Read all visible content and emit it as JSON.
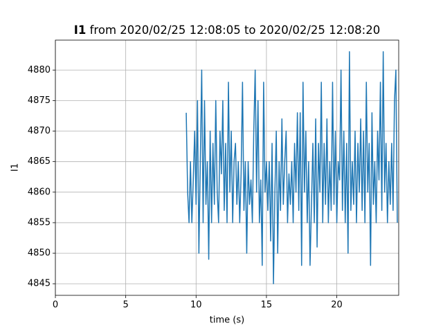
{
  "chart_data": {
    "type": "line",
    "title_bold": "I1",
    "title": "from 2020/02/25 12:08:05 to 2020/02/25 12:08:20",
    "x_label": "time (s)",
    "y_label": "I1",
    "xlim": [
      0,
      24.4
    ],
    "ylim": [
      4843.1,
      4884.9
    ],
    "xticks": [
      0,
      5,
      10,
      15,
      20
    ],
    "yticks": [
      4845,
      4850,
      4855,
      4860,
      4865,
      4870,
      4875,
      4880
    ],
    "grid": true,
    "x": [
      9.3,
      9.4,
      9.5,
      9.6,
      9.7,
      9.8,
      9.9,
      10.0,
      10.1,
      10.2,
      10.3,
      10.4,
      10.5,
      10.6,
      10.7,
      10.8,
      10.9,
      11.0,
      11.1,
      11.2,
      11.3,
      11.4,
      11.5,
      11.6,
      11.7,
      11.8,
      11.9,
      12.0,
      12.1,
      12.2,
      12.3,
      12.4,
      12.5,
      12.6,
      12.7,
      12.8,
      12.9,
      13.0,
      13.1,
      13.2,
      13.3,
      13.4,
      13.5,
      13.6,
      13.7,
      13.8,
      13.9,
      14.0,
      14.1,
      14.2,
      14.3,
      14.4,
      14.5,
      14.6,
      14.7,
      14.8,
      14.9,
      15.0,
      15.1,
      15.2,
      15.3,
      15.4,
      15.5,
      15.6,
      15.7,
      15.8,
      15.9,
      16.0,
      16.1,
      16.2,
      16.3,
      16.4,
      16.5,
      16.6,
      16.7,
      16.8,
      16.9,
      17.0,
      17.1,
      17.2,
      17.3,
      17.4,
      17.5,
      17.6,
      17.7,
      17.8,
      17.9,
      18.0,
      18.1,
      18.2,
      18.3,
      18.4,
      18.5,
      18.6,
      18.7,
      18.8,
      18.9,
      19.0,
      19.1,
      19.2,
      19.3,
      19.4,
      19.5,
      19.6,
      19.7,
      19.8,
      19.9,
      20.0,
      20.1,
      20.2,
      20.3,
      20.4,
      20.5,
      20.6,
      20.7,
      20.8,
      20.9,
      21.0,
      21.1,
      21.2,
      21.3,
      21.4,
      21.5,
      21.6,
      21.7,
      21.8,
      21.9,
      22.0,
      22.1,
      22.2,
      22.3,
      22.4,
      22.5,
      22.6,
      22.7,
      22.8,
      22.9,
      23.0,
      23.1,
      23.2,
      23.3,
      23.4,
      23.5,
      23.6,
      23.7,
      23.8,
      23.9,
      24.0,
      24.1,
      24.2,
      24.3
    ],
    "series": [
      {
        "color": "#1f77b4",
        "values": [
          4873,
          4860,
          4855,
          4865,
          4855,
          4862,
          4870,
          4858,
          4875,
          4850,
          4865,
          4880,
          4855,
          4875,
          4858,
          4865,
          4849,
          4870,
          4855,
          4868,
          4858,
          4875,
          4860,
          4855,
          4870,
          4863,
          4875,
          4857,
          4868,
          4855,
          4878,
          4860,
          4870,
          4855,
          4865,
          4868,
          4858,
          4865,
          4855,
          4863,
          4878,
          4857,
          4865,
          4850,
          4865,
          4858,
          4862,
          4855,
          4870,
          4880,
          4860,
          4875,
          4855,
          4862,
          4848,
          4878,
          4860,
          4865,
          4857,
          4865,
          4852,
          4868,
          4845,
          4860,
          4870,
          4850,
          4865,
          4857,
          4872,
          4858,
          4865,
          4870,
          4855,
          4863,
          4858,
          4865,
          4855,
          4868,
          4860,
          4873,
          4857,
          4873,
          4848,
          4878,
          4860,
          4870,
          4855,
          4865,
          4848,
          4858,
          4868,
          4855,
          4872,
          4851,
          4868,
          4860,
          4878,
          4855,
          4868,
          4858,
          4872,
          4855,
          4865,
          4857,
          4878,
          4858,
          4870,
          4855,
          4865,
          4862,
          4880,
          4857,
          4870,
          4855,
          4868,
          4850,
          4883,
          4857,
          4865,
          4858,
          4870,
          4855,
          4868,
          4860,
          4872,
          4857,
          4870,
          4855,
          4878,
          4860,
          4868,
          4848,
          4873,
          4858,
          4865,
          4855,
          4870,
          4862,
          4878,
          4857,
          4883,
          4860,
          4868,
          4855,
          4865,
          4858,
          4868,
          4857,
          4875,
          4880,
          4855
        ]
      }
    ]
  }
}
